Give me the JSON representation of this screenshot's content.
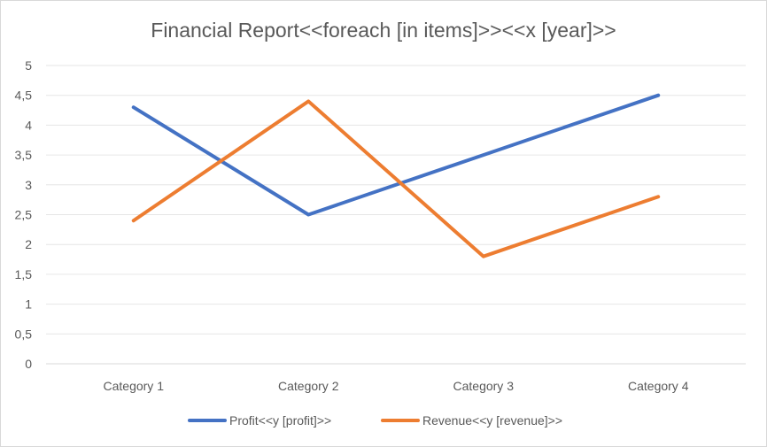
{
  "chart_data": {
    "type": "line",
    "title": "Financial Report<<foreach [in items]>><<x [year]>>",
    "xlabel": "",
    "ylabel": "",
    "categories": [
      "Category 1",
      "Category 2",
      "Category 3",
      "Category 4"
    ],
    "ylim": [
      0,
      5
    ],
    "y_ticks": [
      "0",
      "0,5",
      "1",
      "1,5",
      "2",
      "2,5",
      "3",
      "3,5",
      "4",
      "4,5",
      "5"
    ],
    "grid": true,
    "legend_position": "bottom",
    "series": [
      {
        "name": "Profit<<y [profit]>>",
        "color": "#4472c4",
        "values": [
          4.3,
          2.5,
          3.5,
          4.5
        ]
      },
      {
        "name": "Revenue<<y [revenue]>>",
        "color": "#ed7d31",
        "values": [
          2.4,
          4.4,
          1.8,
          2.8
        ]
      }
    ]
  }
}
